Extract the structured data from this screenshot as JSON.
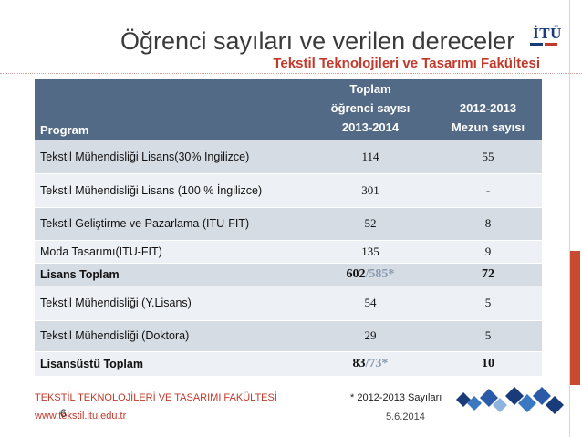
{
  "slide": {
    "title": "Öğrenci sayıları ve verilen dereceler",
    "subtitle": "Tekstil Teknolojileri ve Tasarımı Fakültesi",
    "logo_text": "İTÜ"
  },
  "table": {
    "header": {
      "program": "Program",
      "total_line1": "Toplam",
      "total_line2": "öğrenci sayısı",
      "total_line3": "2013-2014",
      "grad_line1": "2012-2013",
      "grad_line2": "Mezun  sayısı"
    },
    "rows": [
      {
        "program": "Tekstil Mühendisliği Lisans(30% İngilizce)",
        "total": "114",
        "grad": "55"
      },
      {
        "program": "Tekstil Mühendisliği Lisans (100 % İngilizce)",
        "total": "301",
        "grad": "-"
      },
      {
        "program": "Tekstil Geliştirme ve Pazarlama (ITU-FIT)",
        "total": "52",
        "grad": "8"
      },
      {
        "program": "Moda Tasarımı(ITU-FIT)",
        "total": "135",
        "grad": "9"
      },
      {
        "program": "Lisans Toplam",
        "total_a": "602",
        "total_b": "/585*",
        "grad": "72"
      },
      {
        "program": "Tekstil Mühendisliği  (Y.Lisans)",
        "total": "54",
        "grad": "5"
      },
      {
        "program": "Tekstil Mühendisliği (Doktora)",
        "total": "29",
        "grad": "5"
      },
      {
        "program": "Lisansüstü Toplam",
        "total_a": "83",
        "total_b": "/73*",
        "grad": "10"
      }
    ]
  },
  "footer": {
    "faculty": "TEKSTİL TEKNOLOJİLERİ VE TASARIMI FAKÜLTESİ",
    "url": "www.tekstil.itu.edu.tr",
    "page_number": "6",
    "note": "* 2012-2013 Sayıları",
    "date": "5.6.2014"
  },
  "colors": {
    "header_bg": "#536a86",
    "row_odd": "#d6dce4",
    "row_even": "#edf0f4",
    "accent_red": "#c0392b",
    "side_bar": "#c84a2f"
  }
}
